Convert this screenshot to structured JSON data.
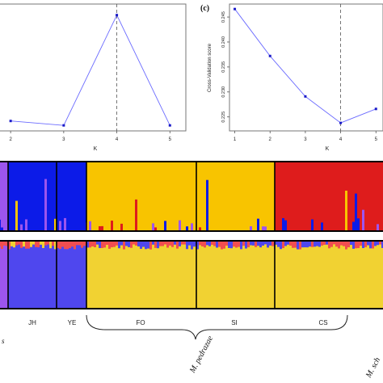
{
  "chart_data": [
    {
      "type": "line",
      "panel": "b (partial)",
      "title": "",
      "xlabel": "K",
      "ylabel": "",
      "x": [
        2,
        3,
        4,
        5
      ],
      "xlim": [
        1.8,
        5.3
      ],
      "y": [
        0.04,
        0.0,
        1.0,
        0.0
      ],
      "ylim": [
        -0.05,
        1.1
      ],
      "vline": 4,
      "color": "#6b6bff"
    },
    {
      "type": "line",
      "panel": "(c)",
      "title": "",
      "xlabel": "K",
      "ylabel": "Cross-Validation score",
      "x": [
        1,
        2,
        3,
        4,
        5
      ],
      "y": [
        0.2466,
        0.2372,
        0.2291,
        0.2238,
        0.2266
      ],
      "xlim": [
        0.85,
        5.2
      ],
      "ylim": [
        0.2222,
        0.2476
      ],
      "yticks": [
        0.225,
        0.23,
        0.235,
        0.24,
        0.245
      ],
      "ytick_labels": [
        "0.225",
        "0.230",
        "0.235",
        "0.240",
        "0.245"
      ],
      "vline": 4,
      "color": "#6b6bff"
    },
    {
      "type": "bar",
      "subtype": "admixture-barplot",
      "populations": [
        "JH",
        "YE",
        "FO",
        "SI",
        "CS"
      ],
      "group_labels": [
        "M. pedrazae",
        "M. sch"
      ],
      "edge_label": "s"
    }
  ],
  "panel_label": "(c)",
  "colors": {
    "purple": "#9d55ee",
    "blue": "#0c1be8",
    "yellow": "#f8c400",
    "red": "#de1c1c",
    "light_blue": "#4f47ee",
    "light_yellow": "#f1d232",
    "light_red": "#f14e50",
    "line": "#6b6bff",
    "axis": "#555555"
  }
}
